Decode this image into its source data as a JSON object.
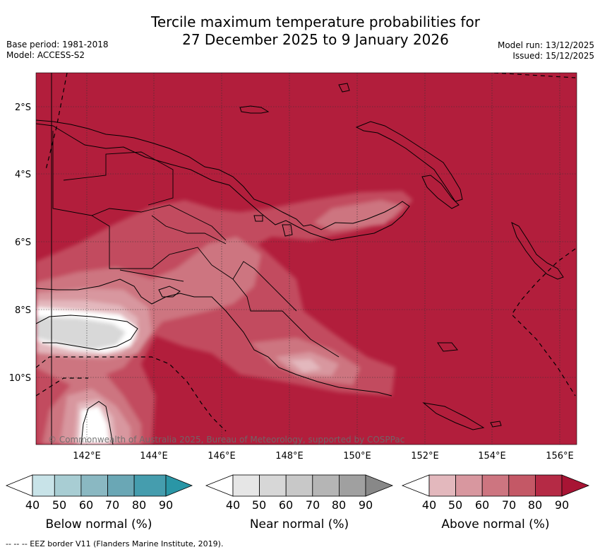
{
  "title": {
    "line1": "Tercile maximum temperature probabilities for",
    "line2": "27 December 2025 to 9 January 2026"
  },
  "meta": {
    "base_period": "Base period: 1981-2018",
    "model": "Model: ACCESS-S2",
    "model_run": "Model run: 13/12/2025",
    "issued": "Issued: 15/12/2025"
  },
  "map": {
    "lat_labels": [
      "2°S",
      "4°S",
      "6°S",
      "8°S",
      "10°S"
    ],
    "lon_labels": [
      "142°E",
      "144°E",
      "146°E",
      "148°E",
      "150°E",
      "152°E",
      "154°E",
      "156°E"
    ],
    "copyright": "© Commonwealth of Australia 2025, Bureau of Meteorology, supported by COSPPac",
    "colors": {
      "land_line": "#000000",
      "above_90": "#b21e3c",
      "above_80": "#c24c5e",
      "above_70": "#cd7580",
      "above_60": "#d8979f",
      "above_50": "#e3b8bd",
      "near_50": "#d8d8d8",
      "near_40": "#e8e8e8"
    }
  },
  "legends": [
    {
      "name": "below",
      "label": "Below normal (%)",
      "ticks": [
        "40",
        "50",
        "60",
        "70",
        "80",
        "90"
      ],
      "colors": [
        "#c8e3e8",
        "#a8cdd3",
        "#8ab8c2",
        "#6aa7b5",
        "#459dae",
        "#2a96a6"
      ]
    },
    {
      "name": "near",
      "label": "Near normal (%)",
      "ticks": [
        "40",
        "50",
        "60",
        "70",
        "80",
        "90"
      ],
      "colors": [
        "#e6e6e6",
        "#d7d7d7",
        "#c8c8c8",
        "#b5b5b5",
        "#a0a0a0",
        "#888888"
      ]
    },
    {
      "name": "above",
      "label": "Above normal (%)",
      "ticks": [
        "40",
        "50",
        "60",
        "70",
        "80",
        "90"
      ],
      "colors": [
        "#e3b8bd",
        "#d8979f",
        "#cd7580",
        "#c45866",
        "#b52a45",
        "#a81434"
      ]
    }
  ],
  "footnote": "--  --  -- EEZ border V11 (Flanders Marine Institute, 2019)."
}
